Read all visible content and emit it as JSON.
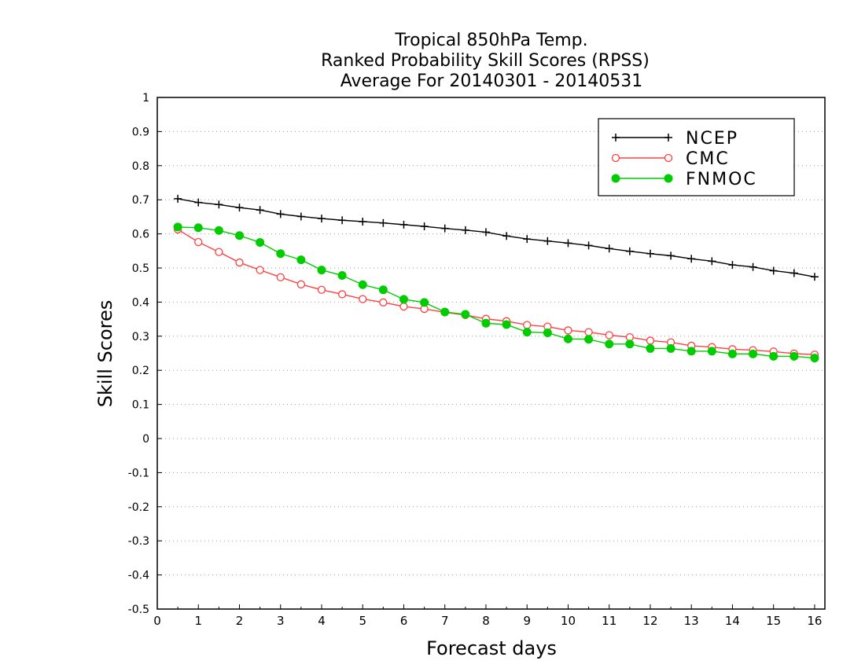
{
  "chart_data": {
    "type": "line",
    "title": [
      "Tropical 850hPa Temp.",
      "Ranked Probability Skill Scores (RPSS)",
      "Average For 20140301 - 20140531"
    ],
    "xlabel": "Forecast days",
    "ylabel": "Skill Scores",
    "xlim": [
      0,
      16.25
    ],
    "ylim": [
      -0.5,
      1
    ],
    "x_ticks": [
      0,
      1,
      2,
      3,
      4,
      5,
      6,
      7,
      8,
      9,
      10,
      11,
      12,
      13,
      14,
      15,
      16
    ],
    "x_tick_labels": [
      "0",
      "1",
      "2",
      "3",
      "4",
      "5",
      "6",
      "7",
      "8",
      "9",
      "10",
      "11",
      "12",
      "13",
      "14",
      "15",
      "16"
    ],
    "y_ticks": [
      -0.5,
      -0.4,
      -0.3,
      -0.2,
      -0.1,
      0,
      0.1,
      0.2,
      0.3,
      0.4,
      0.5,
      0.6,
      0.7,
      0.8,
      0.9,
      1
    ],
    "y_tick_labels": [
      "-0.5",
      "-0.4",
      "-0.3",
      "-0.2",
      "-0.1",
      "0",
      "0.1",
      "0.2",
      "0.3",
      "0.4",
      "0.5",
      "0.6",
      "0.7",
      "0.8",
      "0.9",
      "1"
    ],
    "grid": "horizontal dotted",
    "legend_position": "top-right",
    "x": [
      0.5,
      1,
      1.5,
      2,
      2.5,
      3,
      3.5,
      4,
      4.5,
      5,
      5.5,
      6,
      6.5,
      7,
      7.5,
      8,
      8.5,
      9,
      9.5,
      10,
      10.5,
      11,
      11.5,
      12,
      12.5,
      13,
      13.5,
      14,
      14.5,
      15,
      15.5,
      16
    ],
    "series": [
      {
        "name": "NCEP",
        "color": "#000000",
        "marker": "plus",
        "values": [
          0.703,
          0.692,
          0.686,
          0.677,
          0.67,
          0.658,
          0.651,
          0.645,
          0.64,
          0.636,
          0.632,
          0.627,
          0.622,
          0.616,
          0.611,
          0.605,
          0.594,
          0.585,
          0.579,
          0.573,
          0.566,
          0.557,
          0.549,
          0.542,
          0.536,
          0.527,
          0.52,
          0.509,
          0.503,
          0.492,
          0.485,
          0.474
        ]
      },
      {
        "name": "CMC",
        "color": "#ff4040",
        "marker": "open-circle",
        "values": [
          0.613,
          0.576,
          0.547,
          0.516,
          0.494,
          0.473,
          0.452,
          0.436,
          0.423,
          0.409,
          0.399,
          0.387,
          0.38,
          0.37,
          0.362,
          0.351,
          0.344,
          0.333,
          0.328,
          0.317,
          0.312,
          0.303,
          0.297,
          0.287,
          0.282,
          0.272,
          0.268,
          0.262,
          0.259,
          0.255,
          0.249,
          0.246
        ]
      },
      {
        "name": "FNMOC",
        "color": "#00cc00",
        "marker": "filled-circle",
        "values": [
          0.62,
          0.618,
          0.61,
          0.595,
          0.575,
          0.542,
          0.524,
          0.494,
          0.478,
          0.451,
          0.436,
          0.408,
          0.399,
          0.371,
          0.364,
          0.338,
          0.334,
          0.312,
          0.31,
          0.292,
          0.291,
          0.277,
          0.277,
          0.264,
          0.264,
          0.256,
          0.256,
          0.248,
          0.248,
          0.241,
          0.241,
          0.236
        ]
      }
    ]
  }
}
